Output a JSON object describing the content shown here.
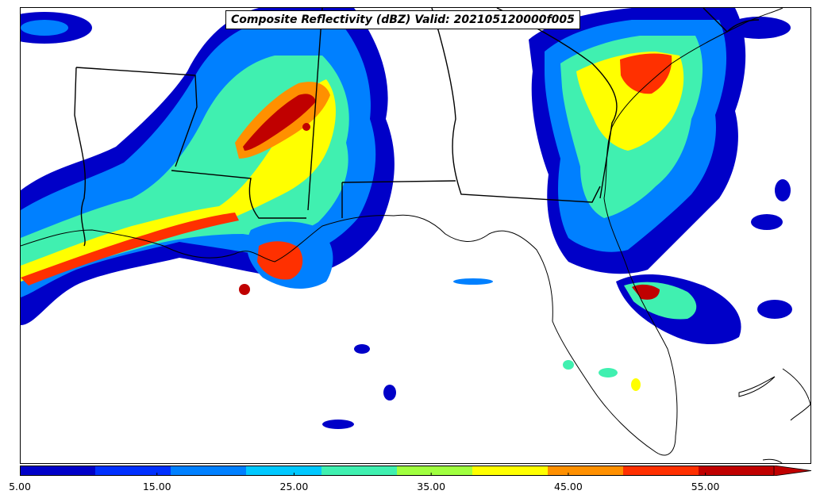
{
  "title": "Composite Reflectivity (dBZ) Valid: 202105120000f005",
  "colorbar": {
    "min": 5.0,
    "max": 60.0,
    "extend": "max",
    "colors": [
      "#0000c8",
      "#0030ff",
      "#0080ff",
      "#00c8ff",
      "#40f0b0",
      "#a0ff40",
      "#ffff00",
      "#ff9000",
      "#ff3000",
      "#c00000"
    ],
    "tick_values": [
      5,
      15,
      25,
      35,
      45,
      55
    ],
    "tick_labels": [
      "5.00",
      "15.00",
      "25.00",
      "35.00",
      "45.00",
      "55.00"
    ]
  },
  "map": {
    "region": "US Gulf Coast / Southeast",
    "border_color": "#000000",
    "background": "#ffffff"
  }
}
